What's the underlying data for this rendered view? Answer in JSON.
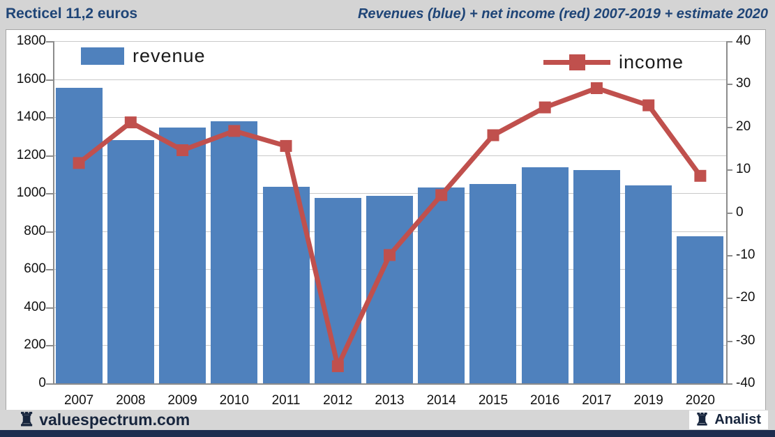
{
  "header": {
    "title_left": "Recticel 11,2 euros",
    "title_right": "Revenues (blue) + net income (red) 2007-2019 + estimate 2020"
  },
  "chart_data": {
    "type": "bar",
    "title": "Revenues (blue) + net income (red) 2007-2019 + estimate 2020",
    "categories": [
      "2007",
      "2008",
      "2009",
      "2010",
      "2011",
      "2012",
      "2013",
      "2014",
      "2015",
      "2016",
      "2017",
      "2019",
      "2020"
    ],
    "series": [
      {
        "name": "revenue",
        "type": "bar",
        "axis": "left",
        "color": "#4f81bd",
        "values": [
          1555,
          1280,
          1345,
          1380,
          1035,
          975,
          985,
          1030,
          1050,
          1135,
          1120,
          1040,
          775
        ]
      },
      {
        "name": "income",
        "type": "line",
        "axis": "right",
        "color": "#c0504d",
        "values": [
          11.5,
          21,
          14.5,
          19,
          15.5,
          -36,
          -10,
          4,
          18,
          24.5,
          29,
          25,
          8.5
        ]
      }
    ],
    "left_axis": {
      "min": 0,
      "max": 1800,
      "step": 200,
      "tick_labels": [
        "1800",
        "1600",
        "1400",
        "1200",
        "1000",
        "800",
        "600",
        "400",
        "200",
        "0"
      ]
    },
    "right_axis": {
      "min": -40,
      "max": 40,
      "step": 10,
      "tick_labels": [
        "40",
        "30",
        "20",
        "10",
        "0",
        "-10",
        "-20",
        "-30",
        "-40"
      ]
    },
    "grid": true,
    "legend": {
      "revenue_label": "revenue",
      "income_label": "income",
      "position": "inside-top (revenue left, income right)"
    }
  },
  "footer": {
    "brand": "valuespectrum.com",
    "analist_label": "Analist",
    "rook_icon_glyph": "♜"
  },
  "colors": {
    "bar_blue": "#4f81bd",
    "line_red": "#c0504d",
    "title_blue": "#1f4577",
    "page_bg": "#d4d4d4",
    "bottom_strip_navy": "#1e2d4f"
  }
}
